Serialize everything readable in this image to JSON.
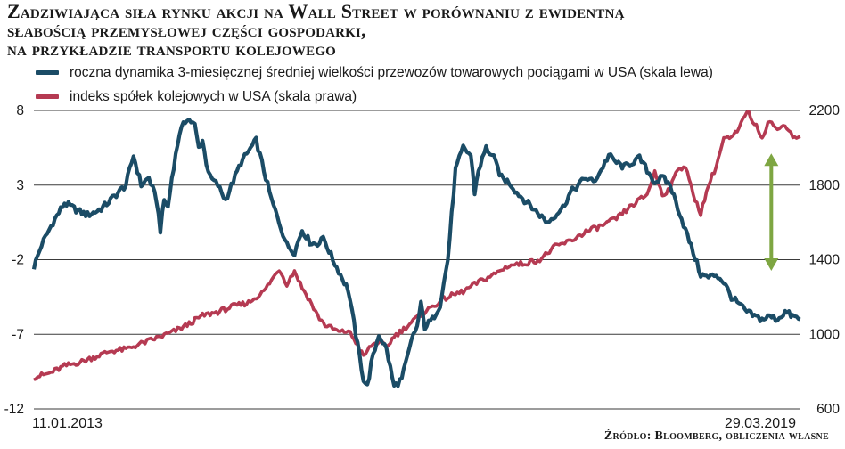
{
  "title_lines": [
    "Zadziwiająca siła rynku akcji na Wall Street w porównaniu z ewidentną",
    "słabością przemysłowej części gospodarki,",
    "na przykładzie transportu kolejowego"
  ],
  "source": "Źródło: Bloomberg, obliczenia własne",
  "colors": {
    "series1": "#1b4c66",
    "series2": "#b53a52",
    "arrow": "#7ea642",
    "grid": "#3a3a3a"
  },
  "chart_data": {
    "type": "line",
    "x_start_label": "11.01.2013",
    "x_end_label": "29.03.2019",
    "left_axis": {
      "ticks": [
        8,
        3,
        -2,
        -7,
        -12
      ],
      "ylim": [
        -12,
        8
      ]
    },
    "right_axis": {
      "ticks": [
        2200,
        1800,
        1400,
        1000,
        600
      ],
      "ylim": [
        600,
        2200
      ]
    },
    "grid": true,
    "legend_position": "top-left",
    "annotation": "double-headed green arrow at the end highlighting the gap between the series",
    "series": [
      {
        "name": "roczna dynamika 3-miesięcznej średniej wielkości przewozów towarowych pociągami w USA (skala lewa)",
        "axis": "left",
        "x": [
          0,
          0.01,
          0.025,
          0.04,
          0.05,
          0.06,
          0.07,
          0.08,
          0.09,
          0.1,
          0.11,
          0.12,
          0.13,
          0.14,
          0.15,
          0.16,
          0.165,
          0.17,
          0.175,
          0.18,
          0.19,
          0.2,
          0.21,
          0.215,
          0.22,
          0.225,
          0.23,
          0.24,
          0.25,
          0.27,
          0.29,
          0.31,
          0.32,
          0.33,
          0.34,
          0.35,
          0.36,
          0.37,
          0.375,
          0.38,
          0.39,
          0.41,
          0.42,
          0.43,
          0.435,
          0.44,
          0.45,
          0.46,
          0.47,
          0.48,
          0.49,
          0.495,
          0.5,
          0.505,
          0.51,
          0.52,
          0.53,
          0.54,
          0.55,
          0.56,
          0.57,
          0.575,
          0.58,
          0.59,
          0.6,
          0.61,
          0.62,
          0.63,
          0.64,
          0.65,
          0.66,
          0.67,
          0.68,
          0.69,
          0.7,
          0.71,
          0.72,
          0.73,
          0.74,
          0.75,
          0.76,
          0.77,
          0.78,
          0.79,
          0.8,
          0.81,
          0.82,
          0.83,
          0.84,
          0.85,
          0.86,
          0.87,
          0.88,
          0.89,
          0.9,
          0.91,
          0.92,
          0.93,
          0.94,
          0.95,
          0.96,
          0.97,
          0.98,
          0.99,
          1.0
        ],
        "values": [
          -2.5,
          -1,
          0.5,
          1.8,
          1.5,
          1.2,
          1.0,
          1.2,
          1.5,
          2.0,
          2.5,
          3.0,
          5.0,
          3.0,
          3.5,
          2.0,
          0,
          2.0,
          1.5,
          3.5,
          6.5,
          7.5,
          7.0,
          5.5,
          6.0,
          4.5,
          3.5,
          3.0,
          2.0,
          4.5,
          6.0,
          2.0,
          0.5,
          -1.0,
          -1.5,
          0,
          -0.8,
          -1.0,
          -0.5,
          -0.8,
          -2.0,
          -4.0,
          -7.0,
          -10.0,
          -10.5,
          -9.0,
          -7.0,
          -8.0,
          -10.5,
          -10.0,
          -8.0,
          -7.0,
          -6.5,
          -5.0,
          -6.5,
          -6.0,
          -5.0,
          -2.0,
          4.0,
          5.5,
          5.0,
          2.5,
          4.0,
          5.5,
          4.8,
          3.5,
          3.2,
          2.5,
          2.0,
          1.5,
          1.0,
          0.5,
          1.0,
          1.5,
          2.5,
          3.0,
          3.5,
          3.2,
          4.0,
          5.0,
          4.5,
          4.2,
          4.5,
          4.8,
          4.0,
          3.2,
          3.5,
          3.0,
          1.5,
          0,
          -1.5,
          -3.0,
          -3.2,
          -3.0,
          -3.5,
          -4.5,
          -5.0,
          -5.5,
          -5.8,
          -6.0,
          -5.8,
          -6.0,
          -5.5,
          -5.8,
          -6.0
        ]
      },
      {
        "name": "indeks spółek kolejowych w USA (skala prawa)",
        "axis": "right",
        "x": [
          0,
          0.02,
          0.04,
          0.06,
          0.08,
          0.1,
          0.12,
          0.14,
          0.16,
          0.18,
          0.2,
          0.22,
          0.24,
          0.26,
          0.28,
          0.3,
          0.31,
          0.32,
          0.33,
          0.34,
          0.35,
          0.36,
          0.37,
          0.38,
          0.39,
          0.4,
          0.41,
          0.42,
          0.43,
          0.44,
          0.45,
          0.46,
          0.47,
          0.48,
          0.5,
          0.52,
          0.54,
          0.56,
          0.58,
          0.6,
          0.62,
          0.64,
          0.66,
          0.68,
          0.7,
          0.72,
          0.74,
          0.76,
          0.78,
          0.8,
          0.81,
          0.82,
          0.83,
          0.84,
          0.85,
          0.86,
          0.87,
          0.88,
          0.89,
          0.9,
          0.91,
          0.92,
          0.93,
          0.94,
          0.95,
          0.96,
          0.97,
          0.98,
          0.99,
          1.0
        ],
        "values": [
          770,
          790,
          830,
          850,
          880,
          910,
          920,
          950,
          980,
          1010,
          1050,
          1100,
          1120,
          1150,
          1170,
          1230,
          1290,
          1350,
          1270,
          1340,
          1250,
          1180,
          1100,
          1050,
          1030,
          1010,
          1020,
          960,
          880,
          940,
          960,
          930,
          990,
          1020,
          1090,
          1150,
          1200,
          1230,
          1280,
          1320,
          1370,
          1380,
          1400,
          1470,
          1500,
          1550,
          1580,
          1620,
          1690,
          1750,
          1870,
          1750,
          1780,
          1890,
          1900,
          1750,
          1650,
          1800,
          1900,
          2050,
          2050,
          2100,
          2200,
          2130,
          2060,
          2150,
          2090,
          2130,
          2060,
          2060
        ]
      }
    ]
  }
}
